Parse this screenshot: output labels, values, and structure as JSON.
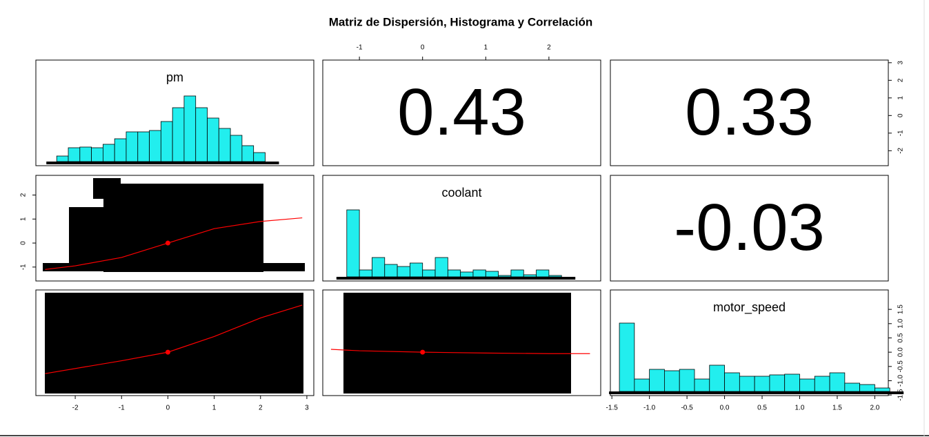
{
  "chart_data": {
    "type": "pairs",
    "title": "Matriz de Dispersión, Histograma y Correlación",
    "hist_color": "#22eeee",
    "smooth_color": "#ff0000",
    "hist_ylim": [
      -6,
      147
    ],
    "variables": [
      {
        "name": "pm",
        "lim": [
          -2.85,
          3.15
        ],
        "xticks": [
          -2,
          -1,
          0,
          1,
          2,
          3
        ],
        "yticks": [
          -2,
          -1,
          0,
          1,
          2,
          3
        ],
        "mean": 0,
        "hist": {
          "bins": [
            -2.4,
            -2.15,
            -1.9,
            -1.65,
            -1.4,
            -1.15,
            -0.9,
            -0.65,
            -0.4,
            -0.15,
            0.1,
            0.35,
            0.6,
            0.85,
            1.1,
            1.35,
            1.6,
            1.85,
            2.1
          ],
          "counts": [
            8,
            20,
            21,
            20,
            25,
            33,
            43,
            43,
            45,
            58,
            78,
            95,
            78,
            63,
            48,
            38,
            23,
            13
          ]
        }
      },
      {
        "name": "coolant",
        "lim": [
          -1.58,
          2.82
        ],
        "xticks": [
          -1,
          0,
          1,
          2
        ],
        "yticks": [
          -1,
          0,
          1,
          2
        ],
        "mean": 0,
        "hist": {
          "bins": [
            -1.2,
            -1.0,
            -0.8,
            -0.6,
            -0.4,
            -0.2,
            0.0,
            0.2,
            0.4,
            0.6,
            0.8,
            1.0,
            1.2,
            1.4,
            1.6,
            1.8,
            2.0,
            2.2
          ],
          "counts": [
            97,
            10,
            28,
            18,
            15,
            20,
            10,
            28,
            10,
            7,
            10,
            8,
            2,
            10,
            3,
            10,
            2
          ]
        }
      },
      {
        "name": "motor_speed",
        "lim": [
          -1.52,
          2.18
        ],
        "xticks": [
          {
            "value": -1.5,
            "label": "-1.5"
          },
          {
            "value": -1,
            "label": "-1.0"
          },
          {
            "value": -0.5,
            "label": "-0.5"
          },
          {
            "value": 0,
            "label": "0.0"
          },
          {
            "value": 0.5,
            "label": "0.5"
          },
          {
            "value": 1,
            "label": "1.0"
          },
          {
            "value": 1.5,
            "label": "1.5"
          },
          {
            "value": 2,
            "label": "2.0"
          }
        ],
        "yticks": [
          {
            "value": -1.5,
            "label": "-1.5"
          },
          {
            "value": -1,
            "label": "-1.0"
          },
          {
            "value": -0.5,
            "label": "-0.5"
          },
          {
            "value": 0,
            "label": "0.0"
          },
          {
            "value": 0.5,
            "label": "0.5"
          },
          {
            "value": 1,
            "label": "1.0"
          },
          {
            "value": 1.5,
            "label": "1.5"
          }
        ],
        "mean": 0,
        "hist": {
          "bins": [
            -1.4,
            -1.2,
            -1.0,
            -0.8,
            -0.6,
            -0.4,
            -0.2,
            0.0,
            0.2,
            0.4,
            0.6,
            0.8,
            1.0,
            1.2,
            1.4,
            1.6,
            1.8,
            2.0,
            2.2
          ],
          "counts": [
            99,
            18,
            32,
            30,
            32,
            18,
            38,
            27,
            22,
            22,
            24,
            25,
            18,
            22,
            27,
            12,
            10,
            5
          ]
        }
      }
    ],
    "correlations": [
      0.43,
      0.33,
      -0.03
    ],
    "smooth": [
      {
        "x": [
          -2.65,
          -2,
          -1,
          0,
          1,
          2,
          2.9
        ],
        "y": [
          -1.1,
          -0.95,
          -0.6,
          0,
          0.6,
          0.9,
          1.05
        ]
      },
      {
        "x": [
          -2.65,
          -1,
          0,
          1,
          2,
          2.9
        ],
        "y": [
          -0.75,
          -0.3,
          0,
          0.55,
          1.2,
          1.65
        ]
      },
      {
        "x": [
          -1.45,
          -1,
          0,
          1,
          2,
          2.65
        ],
        "y": [
          0.1,
          0.05,
          0,
          -0.03,
          -0.05,
          -0.05
        ]
      }
    ]
  }
}
